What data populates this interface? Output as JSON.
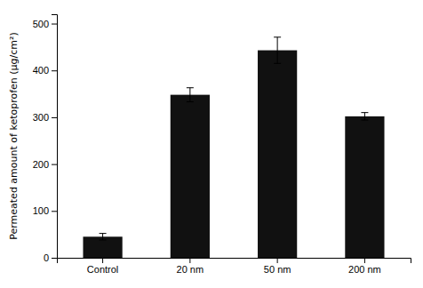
{
  "chart_data": {
    "type": "bar",
    "categories": [
      "Control",
      "20 nm",
      "50 nm",
      "200 nm"
    ],
    "values": [
      45,
      348,
      443,
      302
    ],
    "errors": [
      7,
      15,
      28,
      8
    ],
    "color": "#111111",
    "ylabel": "Permeated amount of ketoprofen (μg/cm²)",
    "ylim": [
      0,
      520
    ],
    "yticks": [
      0,
      100,
      200,
      300,
      400,
      500
    ],
    "grid": false
  }
}
